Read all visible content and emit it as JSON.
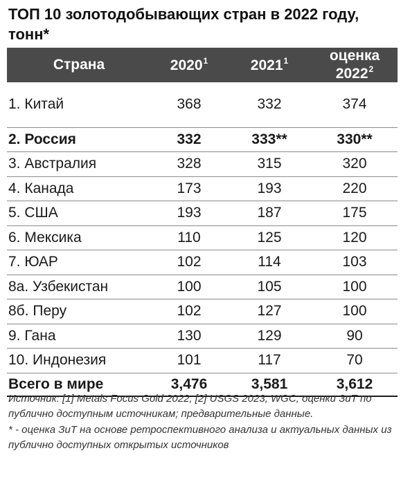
{
  "title": "ТОП 10 золотодобывающих стран в 2022 году, тонн*",
  "header": {
    "country": "Страна",
    "y2020": "2020",
    "y2020_note": "1",
    "y2021": "2021",
    "y2021_note": "1",
    "y2022": "оценка 2022",
    "y2022_note": "2"
  },
  "rows": [
    {
      "country": "1. Китай",
      "v2020": "368",
      "v2021": "332",
      "v2022": "374"
    },
    {
      "country": "2. Россия",
      "v2020": "332",
      "v2021": "333**",
      "v2022": "330**"
    },
    {
      "country": "3. Австралия",
      "v2020": "328",
      "v2021": "315",
      "v2022": "320"
    },
    {
      "country": "4. Канада",
      "v2020": "173",
      "v2021": "193",
      "v2022": "220"
    },
    {
      "country": "5. США",
      "v2020": "193",
      "v2021": "187",
      "v2022": "175"
    },
    {
      "country": "6. Мексика",
      "v2020": "110",
      "v2021": "125",
      "v2022": "120"
    },
    {
      "country": "7. ЮАР",
      "v2020": "102",
      "v2021": "114",
      "v2022": "103"
    },
    {
      "country": "8а. Узбекистан",
      "v2020": "100",
      "v2021": "105",
      "v2022": "100"
    },
    {
      "country": "8б. Перу",
      "v2020": "102",
      "v2021": "127",
      "v2022": "100"
    },
    {
      "country": "9. Гана",
      "v2020": "130",
      "v2021": "129",
      "v2022": "90"
    },
    {
      "country": "10. Индонезия",
      "v2020": "101",
      "v2021": "117",
      "v2022": "70"
    }
  ],
  "total": {
    "label": "Всего в мире",
    "v2020": "3,476",
    "v2021": "3,581",
    "v2022": "3,612"
  },
  "notes": {
    "source": "Источник: [1] Metals Focus Gold 2022, [2] USGS 2023, WGC, оценки ЗиТ по публично доступным источникам; предварительные данные.",
    "asterisk": "* - оценка ЗиТ на основе ретроспективного анализа и актуальных данных из публично доступных открытых источников"
  }
}
